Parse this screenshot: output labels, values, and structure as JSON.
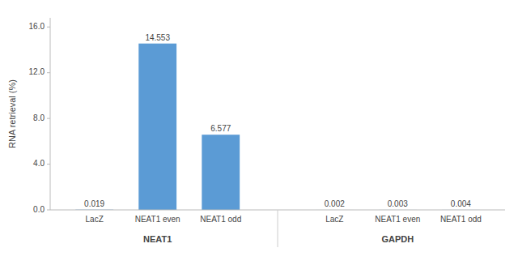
{
  "chart_data": {
    "type": "bar",
    "groups": [
      {
        "label": "NEAT1",
        "categories": [
          "LacZ",
          "NEAT1 even",
          "NEAT1 odd"
        ],
        "values": [
          0.019,
          14.553,
          6.577
        ]
      },
      {
        "label": "GAPDH",
        "categories": [
          "LacZ",
          "NEAT1 even",
          "NEAT1 odd"
        ],
        "values": [
          0.002,
          0.003,
          0.004
        ]
      }
    ],
    "color": "#5B9BD5",
    "ylabel": "RNA retrieval (%)",
    "ylim": [
      0,
      16.8
    ],
    "yticks": [
      {
        "value": 0.0,
        "label": "0.0"
      },
      {
        "value": 4.0,
        "label": "4.0"
      },
      {
        "value": 8.0,
        "label": "8.0"
      },
      {
        "value": 12.0,
        "label": "12.0"
      },
      {
        "value": 16.0,
        "label": "16.0"
      }
    ],
    "grid": false,
    "data_labels": true
  }
}
